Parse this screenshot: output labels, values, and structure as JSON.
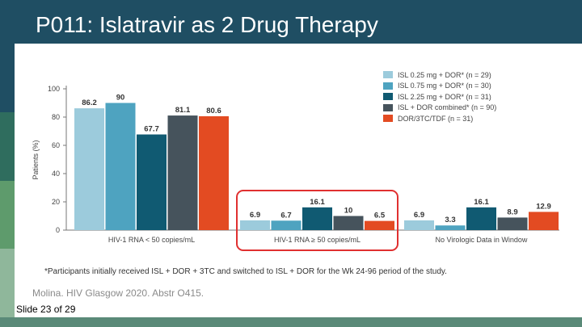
{
  "slide": {
    "title": "P011: Islatravir as 2 Drug Therapy",
    "slide_number": "Slide 23 of 29",
    "footnote": "*Participants initially received ISL + DOR + 3TC and switched to ISL + DOR for the Wk 24-96 period of the study.",
    "citation": "Molina. HIV Glasgow 2020. Abstr O415.",
    "strip_colors": [
      "#1f4e63",
      "#2f6d5e",
      "#5e9b6c",
      "#8fb79b"
    ],
    "highlight_color": "#e03030"
  },
  "chart_data": {
    "type": "bar",
    "ylabel": "Patients (%)",
    "ylim": [
      0,
      100
    ],
    "yticks": [
      0,
      20,
      40,
      60,
      80,
      100
    ],
    "categories": [
      "HIV-1 RNA < 50 copies/mL",
      "HIV-1 RNA ≥ 50 copies/mL",
      "No Virologic Data in Window"
    ],
    "series": [
      {
        "name": "ISL 0.25 mg + DOR* (n = 29)",
        "color": "#9ccbdc",
        "values": [
          86.2,
          6.9,
          6.9
        ],
        "labels": [
          "86.2",
          "6.9",
          "6.9"
        ]
      },
      {
        "name": "ISL 0.75 mg + DOR* (n = 30)",
        "color": "#4ea3c0",
        "values": [
          90,
          6.7,
          3.3
        ],
        "labels": [
          "90",
          "6.7",
          "3.3"
        ]
      },
      {
        "name": "ISL 2.25 mg + DOR* (n = 31)",
        "color": "#105a72",
        "values": [
          67.7,
          16.1,
          16.1
        ],
        "labels": [
          "67.7",
          "16.1",
          "16.1"
        ]
      },
      {
        "name": "ISL + DOR combined* (n = 90)",
        "color": "#46535c",
        "values": [
          81.1,
          10,
          8.9
        ],
        "labels": [
          "81.1",
          "10",
          "8.9"
        ]
      },
      {
        "name": "DOR/3TC/TDF (n = 31)",
        "color": "#e34b22",
        "values": [
          80.6,
          6.5,
          12.9
        ],
        "labels": [
          "80.6",
          "6.5",
          "12.9"
        ]
      }
    ],
    "highlighted_category": "HIV-1 RNA ≥ 50 copies/mL",
    "legend_position": "top-right",
    "grid": false
  }
}
